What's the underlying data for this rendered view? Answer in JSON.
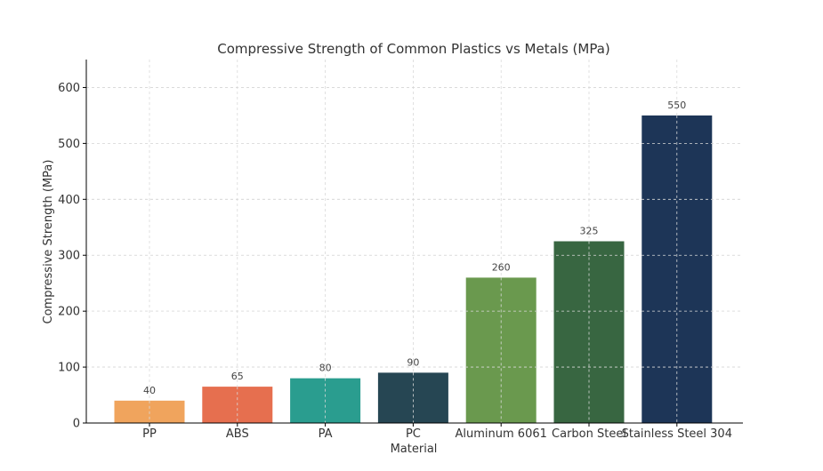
{
  "chart_data": {
    "type": "bar",
    "title": "Compressive Strength of Common Plastics vs Metals (MPa)",
    "xlabel": "Material",
    "ylabel": "Compressive Strength (MPa)",
    "ylim": [
      0,
      650
    ],
    "yticks": [
      0,
      100,
      200,
      300,
      400,
      500,
      600
    ],
    "grid": true,
    "categories": [
      "PP",
      "ABS",
      "PA",
      "PC",
      "Aluminum 6061",
      "Carbon Steel",
      "Stainless Steel 304"
    ],
    "values": [
      40,
      65,
      80,
      90,
      260,
      325,
      550
    ],
    "colors": [
      "#f0a45d",
      "#e66f4f",
      "#2a9d8f",
      "#264653",
      "#6a994e",
      "#386641",
      "#1d3557"
    ]
  }
}
